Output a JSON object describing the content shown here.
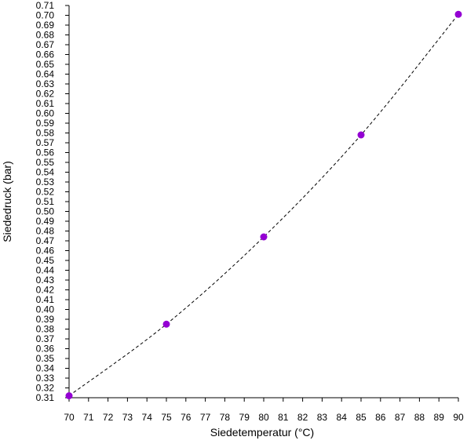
{
  "chart_data": {
    "type": "line",
    "title": "",
    "xlabel": "Siedetemperatur (°C)",
    "ylabel": "Siededruck (bar)",
    "xlim": [
      70,
      90
    ],
    "ylim": [
      0.31,
      0.71
    ],
    "x_ticks": [
      "70",
      "71",
      "72",
      "73",
      "74",
      "75",
      "76",
      "77",
      "78",
      "79",
      "80",
      "81",
      "82",
      "83",
      "84",
      "85",
      "86",
      "87",
      "88",
      "89",
      "90"
    ],
    "y_ticks": [
      "0.31",
      "0.32",
      "0.33",
      "0.34",
      "0.35",
      "0.36",
      "0.37",
      "0.38",
      "0.39",
      "0.40",
      "0.41",
      "0.42",
      "0.43",
      "0.44",
      "0.45",
      "0.46",
      "0.47",
      "0.48",
      "0.49",
      "0.50",
      "0.51",
      "0.52",
      "0.53",
      "0.54",
      "0.55",
      "0.56",
      "0.57",
      "0.58",
      "0.59",
      "0.60",
      "0.61",
      "0.62",
      "0.63",
      "0.64",
      "0.65",
      "0.66",
      "0.67",
      "0.68",
      "0.69",
      "0.70",
      "0.71"
    ],
    "series": [
      {
        "color": "#9400d3",
        "line_color": "#000000",
        "line_style": "dashed",
        "x": [
          70,
          75,
          80,
          85,
          90
        ],
        "y": [
          0.312,
          0.385,
          0.474,
          0.578,
          0.701
        ]
      }
    ],
    "grid": false,
    "legend": "none"
  }
}
